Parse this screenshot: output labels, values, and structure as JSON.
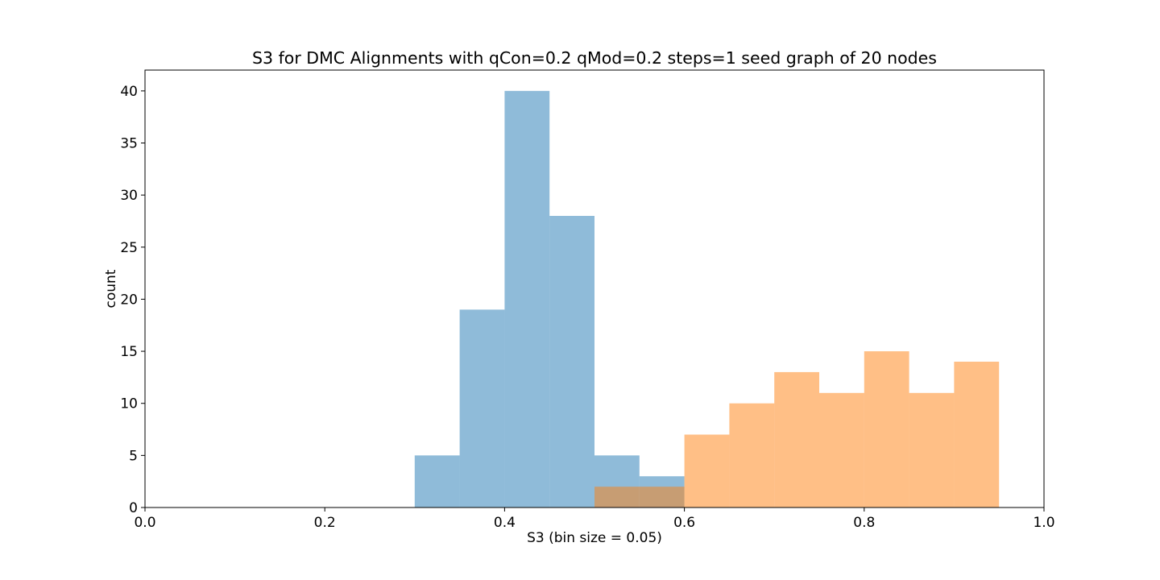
{
  "chart_data": {
    "type": "bar",
    "title": "S3 for DMC Alignments with qCon=0.2 qMod=0.2 steps=1 seed graph of 20 nodes",
    "xlabel": "S3 (bin size = 0.05)",
    "ylabel": "count",
    "xlim": [
      0.0,
      1.0
    ],
    "ylim": [
      0,
      42
    ],
    "x_ticks": [
      "0.0",
      "0.2",
      "0.4",
      "0.6",
      "0.8",
      "1.0"
    ],
    "y_ticks": [
      "0",
      "5",
      "10",
      "15",
      "20",
      "25",
      "30",
      "35",
      "40"
    ],
    "bin_width": 0.05,
    "grid": false,
    "legend": "none",
    "series": [
      {
        "color": "#1f77b4",
        "opacity": 0.5,
        "bins": [
          {
            "x": 0.3,
            "value": 5
          },
          {
            "x": 0.35,
            "value": 19
          },
          {
            "x": 0.4,
            "value": 40
          },
          {
            "x": 0.45,
            "value": 28
          },
          {
            "x": 0.5,
            "value": 5
          },
          {
            "x": 0.55,
            "value": 3
          }
        ]
      },
      {
        "color": "#ff7f0e",
        "opacity": 0.5,
        "bins": [
          {
            "x": 0.5,
            "value": 2
          },
          {
            "x": 0.55,
            "value": 2
          },
          {
            "x": 0.6,
            "value": 7
          },
          {
            "x": 0.65,
            "value": 10
          },
          {
            "x": 0.7,
            "value": 13
          },
          {
            "x": 0.75,
            "value": 11
          },
          {
            "x": 0.8,
            "value": 15
          },
          {
            "x": 0.85,
            "value": 11
          },
          {
            "x": 0.9,
            "value": 14
          }
        ]
      }
    ]
  }
}
